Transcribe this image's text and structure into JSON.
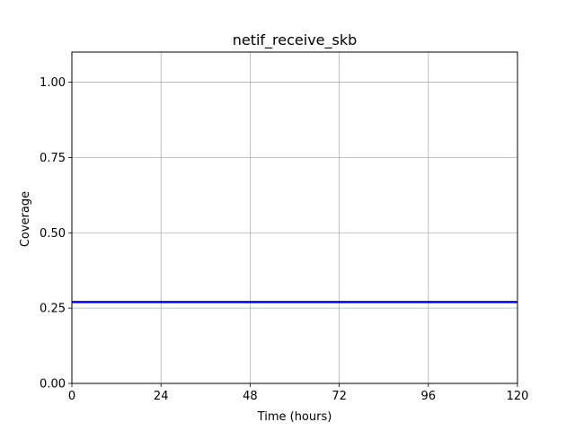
{
  "chart_data": {
    "type": "line",
    "title": "netif_receive_skb",
    "xlabel": "Time (hours)",
    "ylabel": "Coverage",
    "xlim": [
      0,
      120
    ],
    "ylim": [
      0,
      1.1
    ],
    "xticks": [
      0,
      24,
      48,
      72,
      96,
      120
    ],
    "xtick_labels": [
      "0",
      "24",
      "48",
      "72",
      "96",
      "120"
    ],
    "yticks": [
      0.0,
      0.25,
      0.5,
      0.75,
      1.0
    ],
    "ytick_labels": [
      "0.00",
      "0.25",
      "0.50",
      "0.75",
      "1.00"
    ],
    "grid": true,
    "series": [
      {
        "color": "#0000ff",
        "x": [
          0,
          120
        ],
        "y": [
          0.27,
          0.27
        ]
      }
    ]
  }
}
